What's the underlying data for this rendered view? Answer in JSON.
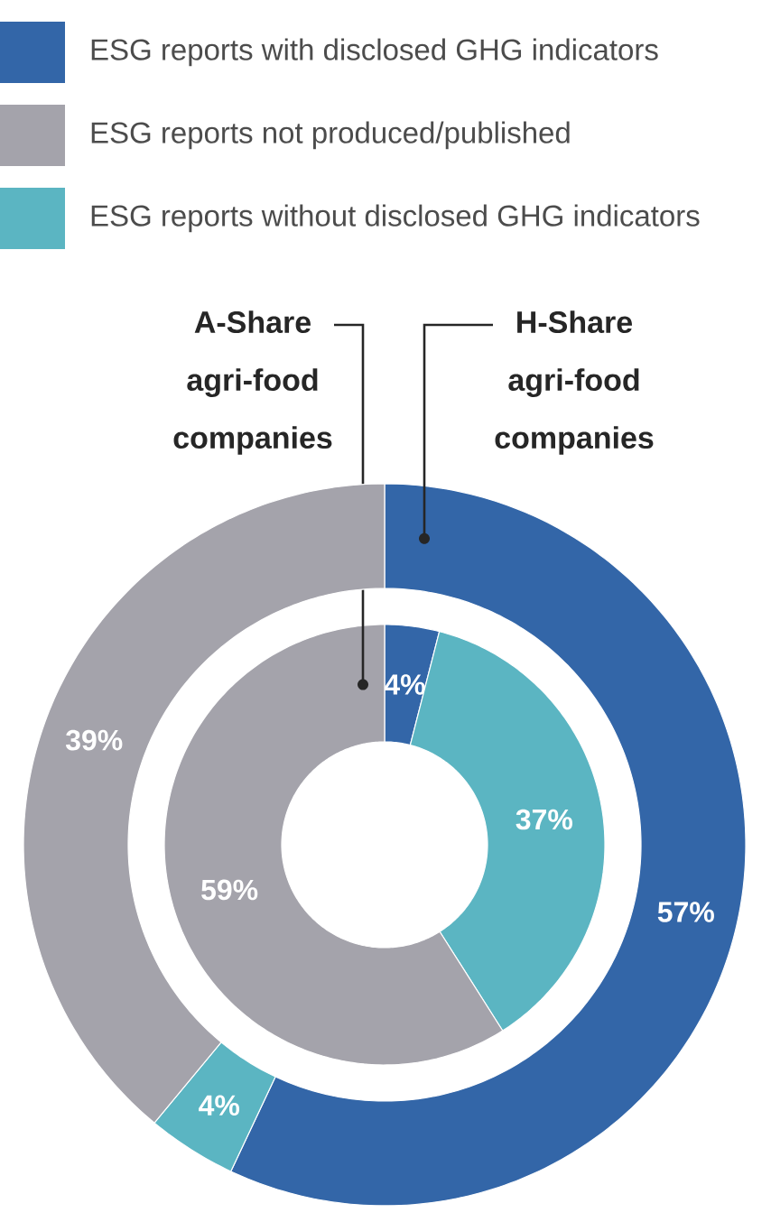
{
  "chart_data": {
    "type": "donut",
    "legend": "top",
    "categories": [
      "ESG reports with disclosed GHG indicators",
      "ESG reports not produced/published",
      "ESG reports without disclosed GHG indicators"
    ],
    "colors": [
      "#3366a8",
      "#a4a3ab",
      "#5bb5c2"
    ],
    "series": [
      {
        "name": "A-Share agri-food companies",
        "values": [
          4,
          59,
          37
        ],
        "value_labels": [
          "4%",
          "59%",
          "37%"
        ]
      },
      {
        "name": "H-Share agri-food companies",
        "values": [
          57,
          39,
          4
        ],
        "value_labels": [
          "57%",
          "39%",
          "4%"
        ]
      }
    ]
  }
}
